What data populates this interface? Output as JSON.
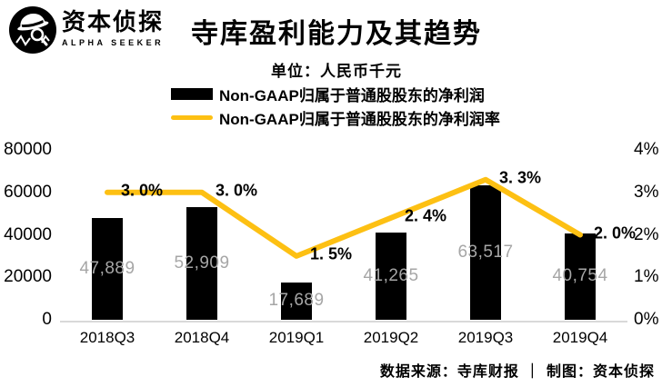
{
  "brand": {
    "logo_icon": "detective-with-hat-and-magnifier",
    "name_cn": "资本侦探",
    "name_en": "ALPHA SEEKER"
  },
  "header": {
    "title": "寺库盈利能力及其趋势",
    "subtitle": "单位：人民币千元"
  },
  "legend": {
    "items": [
      {
        "label": "Non-GAAP归属于普通股股东的净利润",
        "swatch": "black-bar",
        "color": "#000000"
      },
      {
        "label": "Non-GAAP归属于普通股股东的净利润率",
        "swatch": "yellow-line",
        "color": "#FDC013"
      }
    ]
  },
  "footer": {
    "text": "数据来源：寺库财报 ｜ 制图：资本侦探"
  },
  "colors": {
    "accent_yellow": "#FDC013",
    "bar_black": "#000000",
    "value_label_gray": "#A6A6A6",
    "axis_line_gray": "#D9D9D9"
  },
  "chart_data": {
    "type": "combo-bar-line",
    "title": "寺库盈利能力及其趋势",
    "unit": "人民币千元",
    "categories": [
      "2018Q3",
      "2018Q4",
      "2019Q1",
      "2019Q2",
      "2019Q3",
      "2019Q4"
    ],
    "series": [
      {
        "name": "Non-GAAP归属于普通股股东的净利润",
        "type": "bar",
        "axis": "left",
        "color": "#000000",
        "values": [
          47889,
          52909,
          17689,
          41265,
          63517,
          40754
        ],
        "value_labels": [
          "47,889",
          "52,909",
          "17,689",
          "41,265",
          "63,517",
          "40,754"
        ]
      },
      {
        "name": "Non-GAAP归属于普通股股东的净利润率",
        "type": "line",
        "axis": "right",
        "color": "#FDC013",
        "values": [
          3.0,
          3.0,
          1.5,
          2.4,
          3.3,
          2.0
        ],
        "value_labels": [
          "3. 0%",
          "3. 0%",
          "1. 5%",
          "2. 4%",
          "3. 3%",
          "2. 0%"
        ]
      }
    ],
    "left_axis": {
      "min": 0,
      "max": 80000,
      "ticks": [
        {
          "label": "80000",
          "value": 80000
        },
        {
          "label": "60000",
          "value": 60000
        },
        {
          "label": "40000",
          "value": 40000
        },
        {
          "label": "20000",
          "value": 20000
        },
        {
          "label": "0",
          "value": 0
        }
      ]
    },
    "right_axis": {
      "min": 0,
      "max": 4,
      "ticks": [
        {
          "label": "4%",
          "value": 4
        },
        {
          "label": "3%",
          "value": 3
        },
        {
          "label": "2%",
          "value": 2
        },
        {
          "label": "1%",
          "value": 1
        },
        {
          "label": "0%",
          "value": 0
        }
      ]
    },
    "grid": false,
    "legend_position": "top-left"
  }
}
